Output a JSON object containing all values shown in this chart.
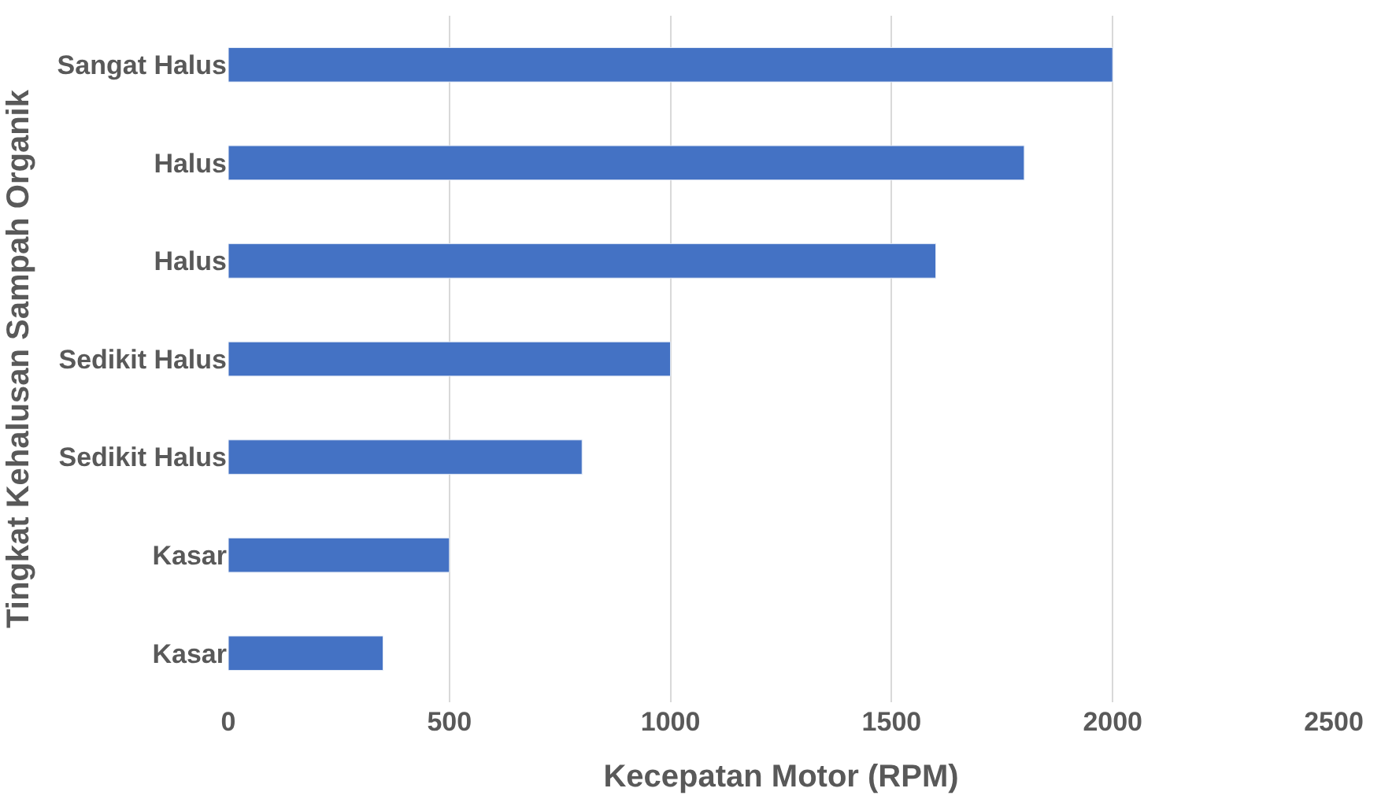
{
  "chart_data": {
    "type": "bar",
    "orientation": "horizontal",
    "xlabel": "Kecepatan Motor (RPM)",
    "ylabel": "Tingkat Kehalusan Sampah Organik",
    "categories": [
      "Sangat Halus",
      "Halus",
      "Halus",
      "Sedikit Halus",
      "Sedikit Halus",
      "Kasar",
      "Kasar"
    ],
    "values": [
      2000,
      1800,
      1600,
      1000,
      800,
      500,
      350
    ],
    "color": "#4472c4",
    "xlim": [
      0,
      2500
    ],
    "xticks": [
      0,
      500,
      1000,
      1500,
      2000,
      2500
    ],
    "grid": "x"
  }
}
